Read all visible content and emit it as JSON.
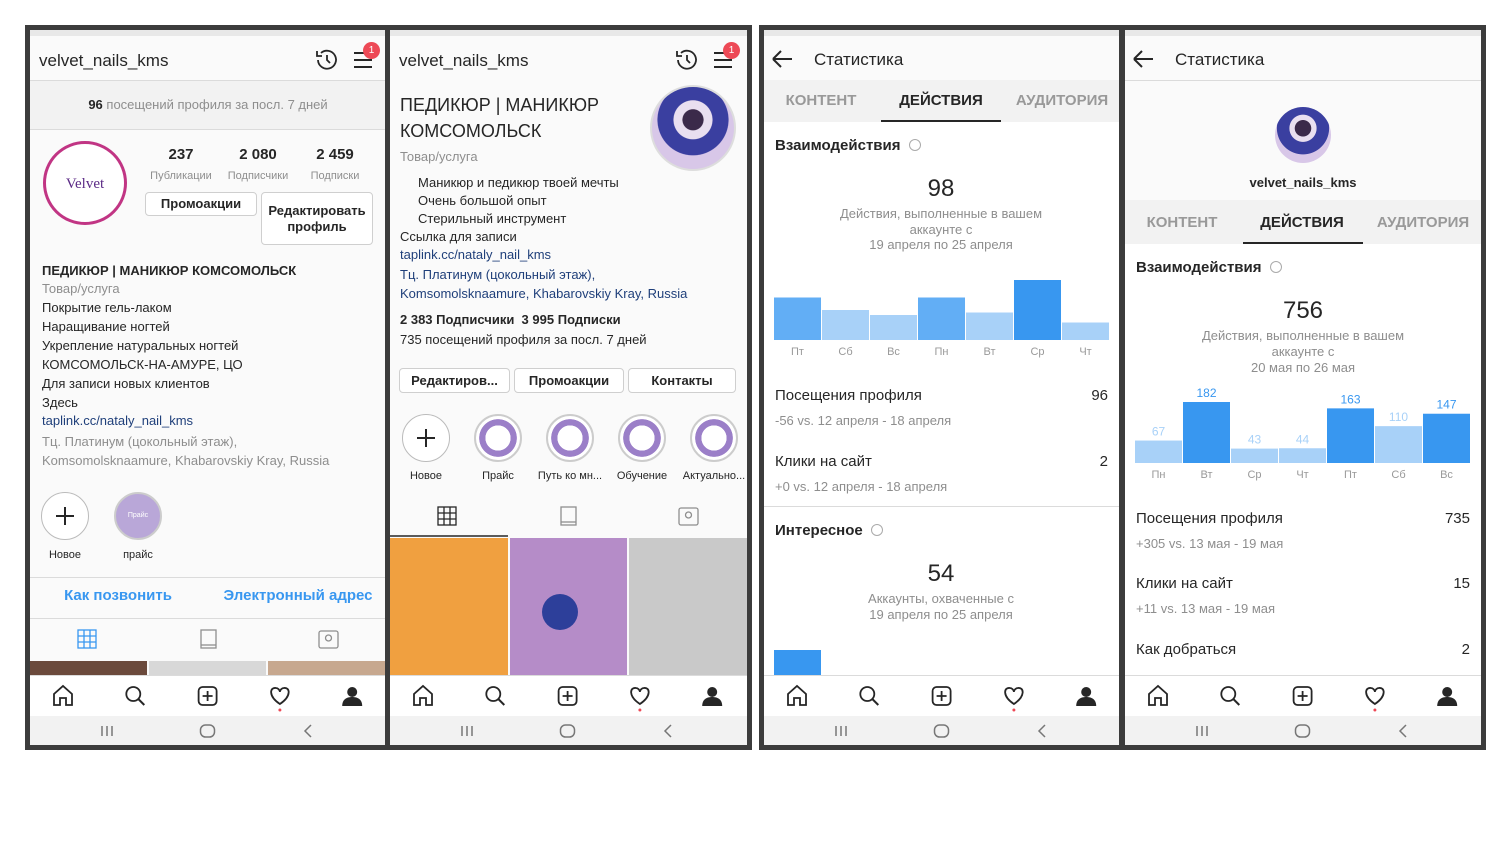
{
  "screens": [
    {
      "username": "velvet_nails_kms",
      "badge": "1",
      "visits_count": 96,
      "visits_text": "посещений профиля за посл. 7 дней",
      "logo": "Velvet",
      "stats": [
        {
          "value": "237",
          "label": "Публикации"
        },
        {
          "value": "2 080",
          "label": "Подписчики"
        },
        {
          "value": "2 459",
          "label": "Подписки"
        }
      ],
      "buttons": [
        "Промоакции",
        "Редактировать профиль"
      ],
      "name": "ПЕДИКЮР | МАНИКЮР КОМСОМОЛЬСК",
      "category": "Товар/услуга",
      "bio": [
        "Покрытие гель-лаком",
        "Наращивание ногтей",
        "Укрепление натуральных ногтей",
        "КОМСОМОЛЬСК-НА-АМУРЕ, ЦО",
        "Для записи новых клиентов",
        "Здесь"
      ],
      "link": "taplink.cc/nataly_nail_kms",
      "address": "Тц. Платинум (цокольный этаж), Komsomolsknaamure, Khabarovskiy Kray, Russia",
      "highlights": [
        "Новое",
        "прайс"
      ],
      "highlight_cover": "Прайс",
      "actions": [
        "Как позвонить",
        "Электронный адрес"
      ]
    },
    {
      "username": "velvet_nails_kms",
      "badge": "1",
      "name": "ПЕДИКЮР | МАНИКЮР КОМСОМОЛЬСК",
      "category": "Товар/услуга",
      "bio": [
        "Маникюр и педикюр твоей мечты",
        "Очень большой опыт",
        "Стерильный инструмент",
        "Ссылка для записи"
      ],
      "link": "taplink.cc/nataly_nail_kms",
      "address": "Тц. Платинум (цокольный этаж), Komsomolsknaamure, Khabarovskiy Kray, Russia",
      "followers": "2 383",
      "followers_label": "Подписчики",
      "following": "3 995",
      "following_label": "Подписки",
      "visits": "735 посещений профиля за посл. 7 дней",
      "buttons": [
        "Редактиров...",
        "Промоакции",
        "Контакты"
      ],
      "highlights": [
        "Новое",
        "Прайс",
        "Путь ко мн...",
        "Обучение",
        "Актуально..."
      ]
    },
    {
      "title": "Статистика",
      "tabs": [
        "КОНТЕНТ",
        "ДЕЙСТВИЯ",
        "АУДИТОРИЯ"
      ],
      "interactions": {
        "title": "Взаимодействия",
        "total": 98,
        "description": "Действия, выполненные в вашем аккаунте с",
        "period": "19 апреля по 25 апреля",
        "chart": {
          "type": "bar",
          "categories": [
            "Пт",
            "Сб",
            "Вс",
            "Пн",
            "Вт",
            "Ср",
            "Чт"
          ],
          "values": [
            17,
            12,
            10,
            17,
            11,
            24,
            7
          ],
          "colors": [
            "#62aef5",
            "#a8d1f8",
            "#a8d1f8",
            "#62aef5",
            "#a8d1f8",
            "#3897f0",
            "#a8d1f8"
          ],
          "ylim": [
            0,
            24
          ],
          "data_labels": false
        }
      },
      "metrics": [
        {
          "label": "Посещения профиля",
          "value": 96,
          "comparison": "-56 vs. 12 апреля - 18 апреля"
        },
        {
          "label": "Клики на сайт",
          "value": 2,
          "comparison": "+0 vs. 12 апреля - 18 апреля"
        }
      ],
      "discovery": {
        "title": "Интересное",
        "total": 54,
        "description": "Аккаунты, охваченные с",
        "period": "19 апреля по 25 апреля"
      }
    },
    {
      "title": "Статистика",
      "username": "velvet_nails_kms",
      "tabs": [
        "КОНТЕНТ",
        "ДЕЙСТВИЯ",
        "АУДИТОРИЯ"
      ],
      "interactions": {
        "title": "Взаимодействия",
        "total": 756,
        "description": "Действия, выполненные в вашем аккаунте с",
        "period": "20 мая по 26 мая",
        "chart": {
          "type": "bar",
          "categories": [
            "Пн",
            "Вт",
            "Ср",
            "Чт",
            "Пт",
            "Сб",
            "Вс"
          ],
          "values": [
            67,
            182,
            43,
            44,
            163,
            110,
            147
          ],
          "colors": [
            "#a8d1f8",
            "#3897f0",
            "#a8d1f8",
            "#a8d1f8",
            "#3897f0",
            "#a8d1f8",
            "#3897f0"
          ],
          "ylim": [
            0,
            182
          ],
          "data_labels": true
        }
      },
      "metrics": [
        {
          "label": "Посещения профиля",
          "value": 735,
          "comparison": "+305 vs. 13 мая - 19 мая"
        },
        {
          "label": "Клики на сайт",
          "value": 15,
          "comparison": "+11 vs. 13 мая - 19 мая"
        },
        {
          "label": "Как добраться",
          "value": 2
        }
      ]
    }
  ]
}
